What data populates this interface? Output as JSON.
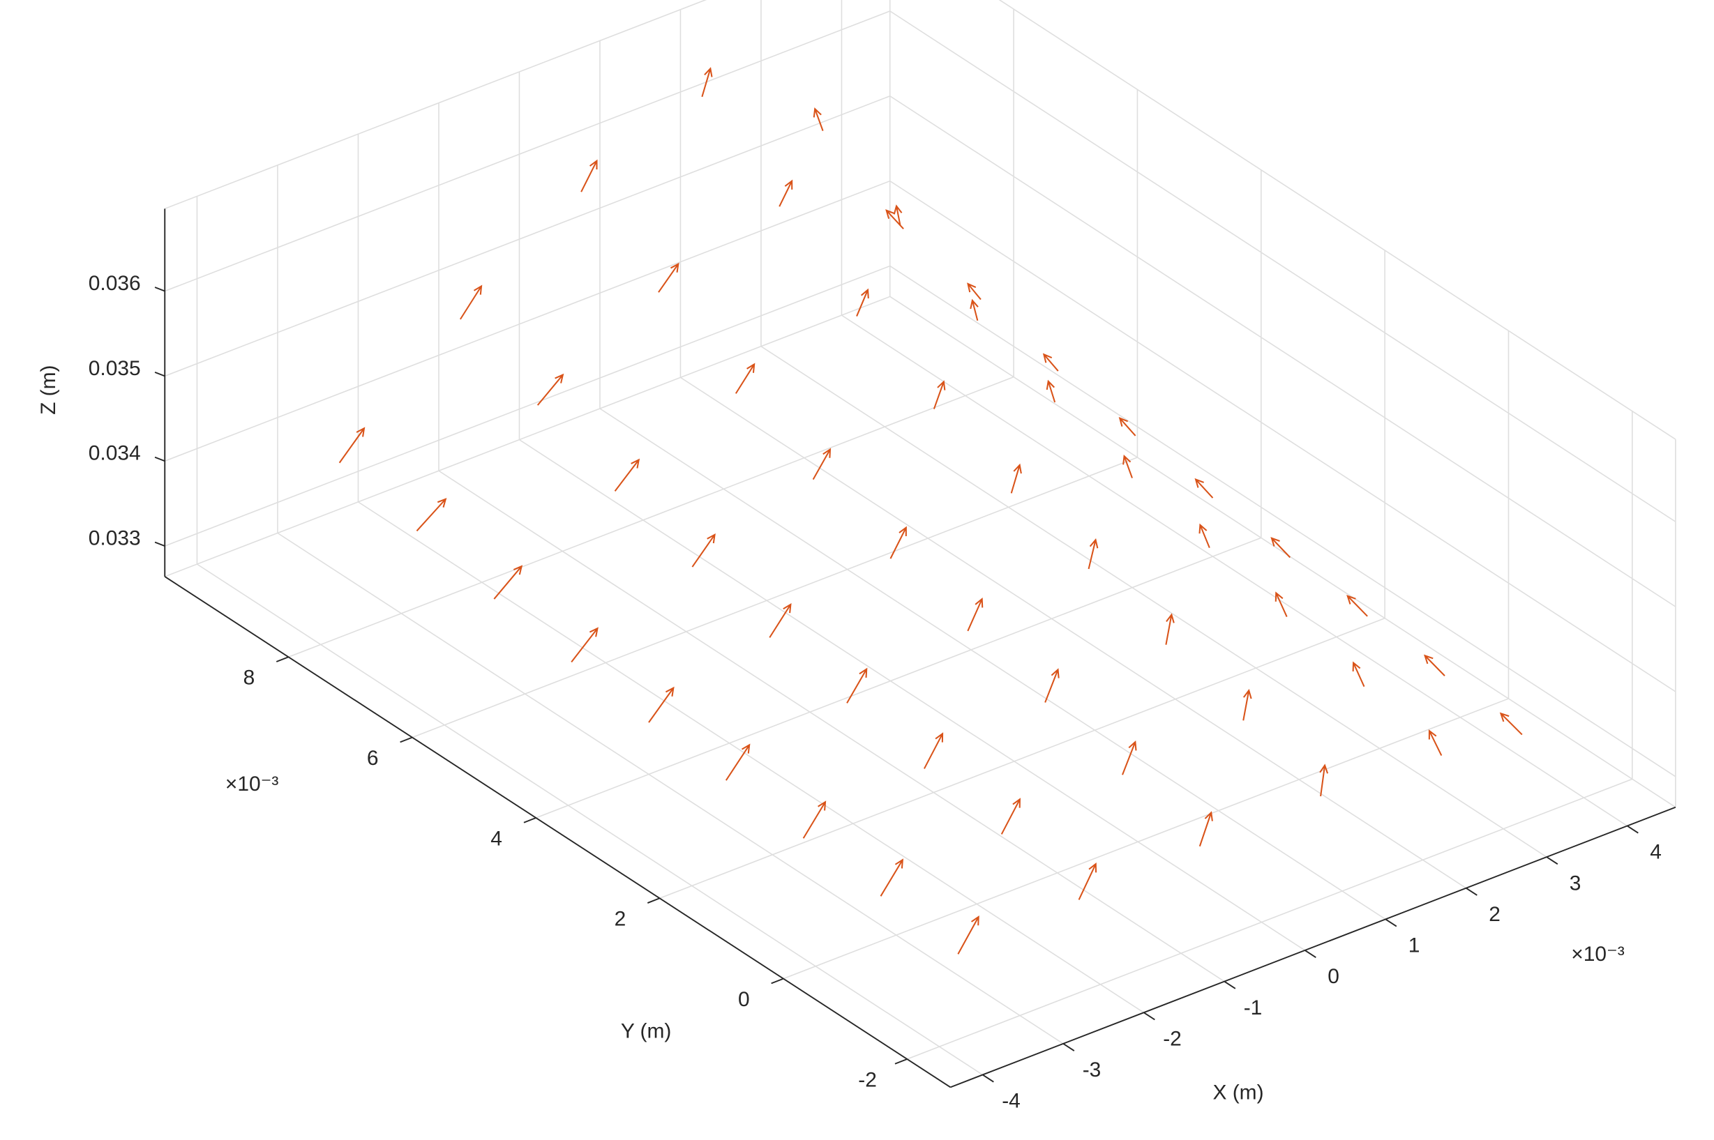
{
  "chart_data": {
    "type": "quiver3",
    "xlabel": "X (m)",
    "ylabel": "Y (m)",
    "zlabel": "Z (m)",
    "x_exponent": "×10⁻³",
    "y_exponent": "×10⁻³",
    "xlim": [
      -0.0044,
      0.0046
    ],
    "ylim": [
      -0.0027,
      0.01
    ],
    "zlim": [
      0.03264,
      0.03697
    ],
    "xticks": [
      {
        "value": -0.004,
        "label": "-4"
      },
      {
        "value": -0.003,
        "label": "-3"
      },
      {
        "value": -0.002,
        "label": "-2"
      },
      {
        "value": -0.001,
        "label": "-1"
      },
      {
        "value": 0,
        "label": "0"
      },
      {
        "value": 0.001,
        "label": "1"
      },
      {
        "value": 0.002,
        "label": "2"
      },
      {
        "value": 0.003,
        "label": "3"
      },
      {
        "value": 0.004,
        "label": "4"
      }
    ],
    "yticks": [
      {
        "value": -0.002,
        "label": "-2"
      },
      {
        "value": 0,
        "label": "0"
      },
      {
        "value": 0.002,
        "label": "2"
      },
      {
        "value": 0.004,
        "label": "4"
      },
      {
        "value": 0.006,
        "label": "6"
      },
      {
        "value": 0.008,
        "label": "8"
      }
    ],
    "zticks": [
      0.033,
      0.034,
      0.035,
      0.036
    ],
    "grid": true,
    "color": "#d95319",
    "x": [
      -0.003,
      -0.0015,
      0,
      0.0015,
      0.003,
      0.004,
      -0.003,
      -0.0015,
      0,
      0.0015,
      0.003,
      0.004,
      -0.003,
      -0.0015,
      0,
      0.0015,
      0.003,
      0.004,
      -0.003,
      -0.0015,
      0,
      0.0015,
      0.003,
      0.004,
      -0.003,
      -0.0015,
      0,
      0.0015,
      0.003,
      0.004,
      -0.003,
      -0.0015,
      0,
      0.0015,
      0.003,
      0.004,
      -0.003,
      -0.0015,
      0,
      0.0015,
      0.003,
      0.004,
      -0.003,
      -0.0015,
      0,
      0.0015,
      0.003,
      0.004,
      -0.003,
      -0.0015,
      0,
      0.0015,
      0.003,
      0.004
    ],
    "y": [
      -0.001,
      -0.001,
      -0.001,
      -0.001,
      -0.001,
      -0.001,
      0.00025,
      0.00025,
      0.00025,
      0.00025,
      0.00025,
      0.00025,
      0.0015,
      0.0015,
      0.0015,
      0.0015,
      0.0015,
      0.0015,
      0.00275,
      0.00275,
      0.00275,
      0.00275,
      0.00275,
      0.00275,
      0.004,
      0.004,
      0.004,
      0.004,
      0.004,
      0.004,
      0.00525,
      0.00525,
      0.00525,
      0.00525,
      0.00525,
      0.00525,
      0.0065,
      0.0065,
      0.0065,
      0.0065,
      0.0065,
      0.0065,
      0.00775,
      0.00775,
      0.00775,
      0.00775,
      0.00775,
      0.00775,
      0.009,
      0.009,
      0.009,
      0.009,
      0.009,
      0.009
    ],
    "z": [
      0.03289,
      0.03298,
      0.03306,
      0.0331,
      0.03303,
      0.03291,
      0.03298,
      0.03316,
      0.03331,
      0.0334,
      0.03325,
      0.03301,
      0.03307,
      0.03334,
      0.03357,
      0.0337,
      0.03348,
      0.03312,
      0.03316,
      0.03352,
      0.03382,
      0.034,
      0.0337,
      0.03322,
      0.03325,
      0.0337,
      0.03408,
      0.0343,
      0.03393,
      0.03333,
      0.03337,
      0.03394,
      0.03442,
      0.0347,
      0.03423,
      0.03347,
      0.03352,
      0.03424,
      0.03484,
      0.0352,
      0.0346,
      0.03364,
      0.03373,
      0.03466,
      0.03544,
      0.0359,
      0.03513,
      0.03389,
      0.03394,
      0.03508,
      0.03603,
      0.0366,
      0.03565,
      0.03413
    ],
    "u": [
      0.45,
      0.35,
      0.2,
      0,
      -0.45,
      -0.7,
      0.45,
      0.35,
      0.2,
      0,
      -0.45,
      -0.7,
      0.45,
      0.35,
      0.2,
      0,
      -0.45,
      -0.7,
      0.45,
      0.35,
      0.2,
      0,
      -0.45,
      -0.7,
      0.45,
      0.35,
      0.2,
      0,
      -0.45,
      -0.7,
      0.45,
      0.35,
      0.2,
      0,
      -0.45,
      -0.7,
      0.45,
      0.35,
      0.2,
      0,
      -0.45,
      -0.7,
      0.45,
      0.35,
      0.2,
      0,
      -0.45,
      -0.7,
      0.45,
      0.35,
      0.2,
      0,
      -0.45,
      -0.7
    ],
    "v": [
      -0.15,
      -0.15,
      -0.15,
      -0.15,
      -0.15,
      -0.15,
      -0.2,
      -0.2,
      -0.2,
      -0.2,
      -0.2,
      -0.2,
      -0.2,
      -0.2,
      -0.2,
      -0.2,
      -0.2,
      -0.2,
      -0.25,
      -0.25,
      -0.25,
      -0.25,
      -0.25,
      -0.25,
      -0.3,
      -0.3,
      -0.3,
      -0.3,
      -0.3,
      -0.3,
      -0.35,
      -0.35,
      -0.35,
      -0.35,
      -0.35,
      -0.35,
      -0.4,
      -0.4,
      -0.4,
      -0.4,
      -0.4,
      -0.4,
      -0.45,
      -0.45,
      -0.45,
      -0.45,
      -0.45,
      -0.45,
      -0.3,
      -0.3,
      -0.3,
      -0.3,
      -0.3,
      -0.3
    ],
    "w": [
      0.88,
      0.88,
      0.88,
      0.88,
      0.88,
      0.88,
      0.88,
      0.88,
      0.88,
      0.88,
      0.88,
      0.88,
      0.88,
      0.88,
      0.88,
      0.88,
      0.88,
      0.88,
      0.88,
      0.88,
      0.88,
      0.88,
      0.88,
      0.88,
      0.88,
      0.88,
      0.88,
      0.88,
      0.88,
      0.88,
      0.88,
      0.88,
      0.88,
      0.88,
      0.88,
      0.88,
      0.88,
      0.88,
      0.88,
      0.88,
      0.88,
      0.88,
      0.88,
      0.88,
      0.88,
      0.88,
      0.88,
      0.88,
      0.88,
      0.88,
      0.88,
      0.88,
      0.88,
      0.88
    ]
  }
}
